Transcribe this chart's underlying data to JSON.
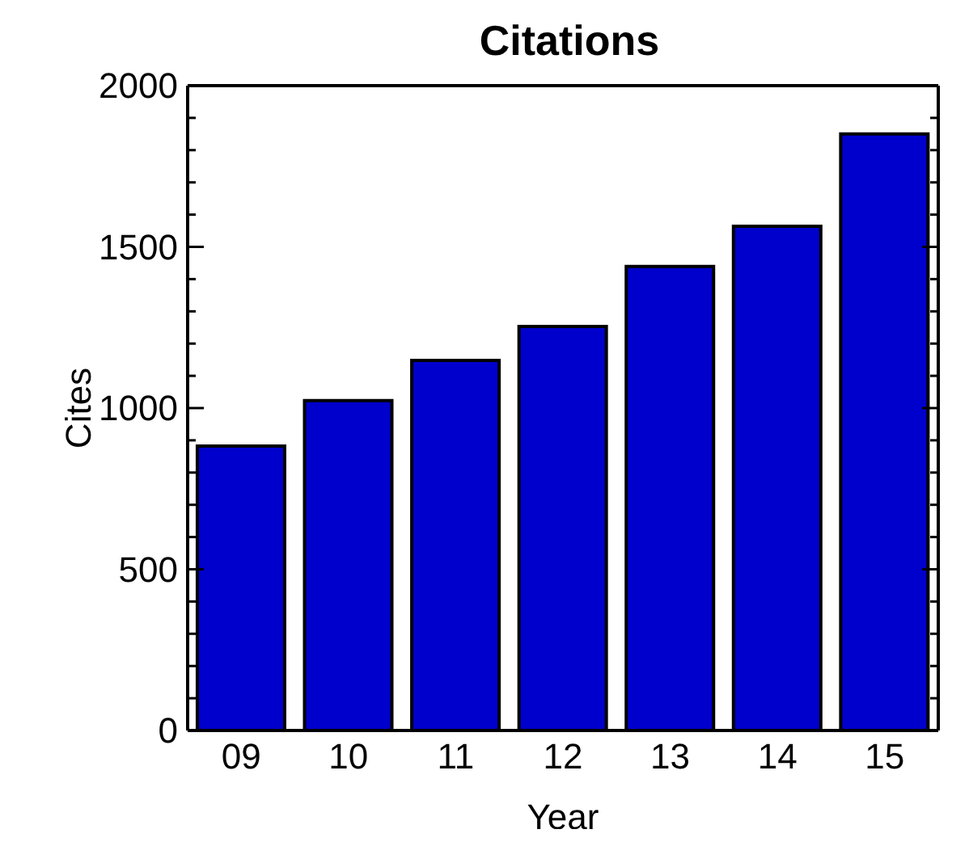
{
  "chart_data": {
    "type": "bar",
    "title": "Citations",
    "xlabel": "Year",
    "ylabel": "Cites",
    "categories": [
      "09",
      "10",
      "11",
      "12",
      "13",
      "14",
      "15"
    ],
    "values": [
      882,
      1023,
      1148,
      1253,
      1439,
      1564,
      1850
    ],
    "color": "#0000cc",
    "ylim": [
      0,
      2000
    ],
    "yticks": [
      0,
      {
        "value": 100,
        "label": null
      },
      {
        "value": 200,
        "label": null
      },
      {
        "value": 300,
        "label": null
      },
      {
        "value": 400,
        "label": null
      },
      500,
      {
        "value": 600,
        "label": null
      },
      {
        "value": 700,
        "label": null
      },
      {
        "value": 800,
        "label": null
      },
      {
        "value": 900,
        "label": null
      },
      1000,
      {
        "value": 1100,
        "label": null
      },
      {
        "value": 1200,
        "label": null
      },
      {
        "value": 1300,
        "label": null
      },
      {
        "value": 1400,
        "label": null
      },
      1500,
      {
        "value": 1600,
        "label": null
      },
      {
        "value": 1700,
        "label": null
      },
      {
        "value": 1800,
        "label": null
      },
      {
        "value": 1900,
        "label": null
      },
      2000
    ],
    "grid": false
  }
}
